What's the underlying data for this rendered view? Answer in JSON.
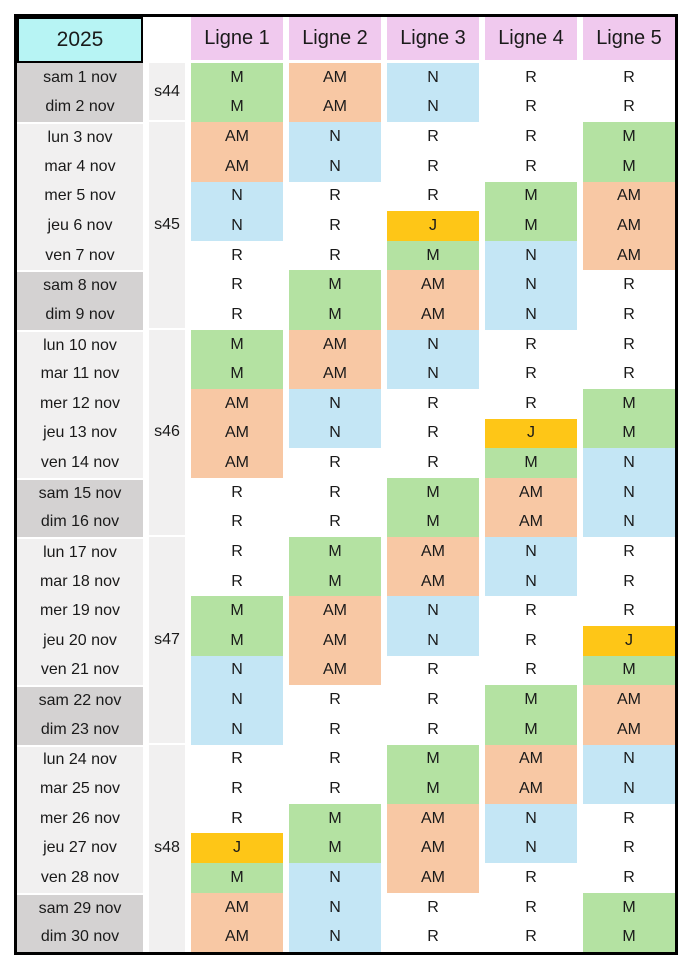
{
  "year_label": "2025",
  "columns": [
    "Ligne 1",
    "Ligne 2",
    "Ligne 3",
    "Ligne 4",
    "Ligne 5"
  ],
  "shift_colors": {
    "M": "#b4e2a2",
    "AM": "#f8c8a4",
    "N": "#c4e6f5",
    "J": "#fec617",
    "R": "#ffffff"
  },
  "theme": {
    "year_bg": "#b7f4f4",
    "header_bg": "#f0c9ee",
    "weekend_bg": "#d4d2d2",
    "weekday_bg": "#f1f0f0",
    "weekcol_bg": "#f1f0f0",
    "border_color": "#000000",
    "text_color": "#1a1a1a"
  },
  "weeks": [
    {
      "label": "s44",
      "days": [
        {
          "date": "sam 1 nov",
          "weekend": true,
          "shifts": [
            "M",
            "AM",
            "N",
            "R",
            "R"
          ]
        },
        {
          "date": "dim 2 nov",
          "weekend": true,
          "shifts": [
            "M",
            "AM",
            "N",
            "R",
            "R"
          ]
        }
      ]
    },
    {
      "label": "s45",
      "days": [
        {
          "date": "lun 3 nov",
          "weekend": false,
          "shifts": [
            "AM",
            "N",
            "R",
            "R",
            "M"
          ]
        },
        {
          "date": "mar 4 nov",
          "weekend": false,
          "shifts": [
            "AM",
            "N",
            "R",
            "R",
            "M"
          ]
        },
        {
          "date": "mer 5 nov",
          "weekend": false,
          "shifts": [
            "N",
            "R",
            "R",
            "M",
            "AM"
          ]
        },
        {
          "date": "jeu 6 nov",
          "weekend": false,
          "shifts": [
            "N",
            "R",
            "J",
            "M",
            "AM"
          ]
        },
        {
          "date": "ven 7 nov",
          "weekend": false,
          "shifts": [
            "R",
            "R",
            "M",
            "N",
            "AM"
          ]
        },
        {
          "date": "sam 8 nov",
          "weekend": true,
          "shifts": [
            "R",
            "M",
            "AM",
            "N",
            "R"
          ]
        },
        {
          "date": "dim 9 nov",
          "weekend": true,
          "shifts": [
            "R",
            "M",
            "AM",
            "N",
            "R"
          ]
        }
      ]
    },
    {
      "label": "s46",
      "days": [
        {
          "date": "lun 10 nov",
          "weekend": false,
          "shifts": [
            "M",
            "AM",
            "N",
            "R",
            "R"
          ]
        },
        {
          "date": "mar 11 nov",
          "weekend": false,
          "shifts": [
            "M",
            "AM",
            "N",
            "R",
            "R"
          ]
        },
        {
          "date": "mer 12 nov",
          "weekend": false,
          "shifts": [
            "AM",
            "N",
            "R",
            "R",
            "M"
          ]
        },
        {
          "date": "jeu 13 nov",
          "weekend": false,
          "shifts": [
            "AM",
            "N",
            "R",
            "J",
            "M"
          ]
        },
        {
          "date": "ven 14 nov",
          "weekend": false,
          "shifts": [
            "AM",
            "R",
            "R",
            "M",
            "N"
          ]
        },
        {
          "date": "sam 15 nov",
          "weekend": true,
          "shifts": [
            "R",
            "R",
            "M",
            "AM",
            "N"
          ]
        },
        {
          "date": "dim 16 nov",
          "weekend": true,
          "shifts": [
            "R",
            "R",
            "M",
            "AM",
            "N"
          ]
        }
      ]
    },
    {
      "label": "s47",
      "days": [
        {
          "date": "lun 17 nov",
          "weekend": false,
          "shifts": [
            "R",
            "M",
            "AM",
            "N",
            "R"
          ]
        },
        {
          "date": "mar 18 nov",
          "weekend": false,
          "shifts": [
            "R",
            "M",
            "AM",
            "N",
            "R"
          ]
        },
        {
          "date": "mer 19 nov",
          "weekend": false,
          "shifts": [
            "M",
            "AM",
            "N",
            "R",
            "R"
          ]
        },
        {
          "date": "jeu 20 nov",
          "weekend": false,
          "shifts": [
            "M",
            "AM",
            "N",
            "R",
            "J"
          ]
        },
        {
          "date": "ven 21 nov",
          "weekend": false,
          "shifts": [
            "N",
            "AM",
            "R",
            "R",
            "M"
          ]
        },
        {
          "date": "sam 22 nov",
          "weekend": true,
          "shifts": [
            "N",
            "R",
            "R",
            "M",
            "AM"
          ]
        },
        {
          "date": "dim 23 nov",
          "weekend": true,
          "shifts": [
            "N",
            "R",
            "R",
            "M",
            "AM"
          ]
        }
      ]
    },
    {
      "label": "s48",
      "days": [
        {
          "date": "lun 24 nov",
          "weekend": false,
          "shifts": [
            "R",
            "R",
            "M",
            "AM",
            "N"
          ]
        },
        {
          "date": "mar 25 nov",
          "weekend": false,
          "shifts": [
            "R",
            "R",
            "M",
            "AM",
            "N"
          ]
        },
        {
          "date": "mer 26 nov",
          "weekend": false,
          "shifts": [
            "R",
            "M",
            "AM",
            "N",
            "R"
          ]
        },
        {
          "date": "jeu 27 nov",
          "weekend": false,
          "shifts": [
            "J",
            "M",
            "AM",
            "N",
            "R"
          ]
        },
        {
          "date": "ven 28 nov",
          "weekend": false,
          "shifts": [
            "M",
            "N",
            "AM",
            "R",
            "R"
          ]
        },
        {
          "date": "sam 29 nov",
          "weekend": true,
          "shifts": [
            "AM",
            "N",
            "R",
            "R",
            "M"
          ]
        },
        {
          "date": "dim 30 nov",
          "weekend": true,
          "shifts": [
            "AM",
            "N",
            "R",
            "R",
            "M"
          ]
        }
      ]
    }
  ]
}
